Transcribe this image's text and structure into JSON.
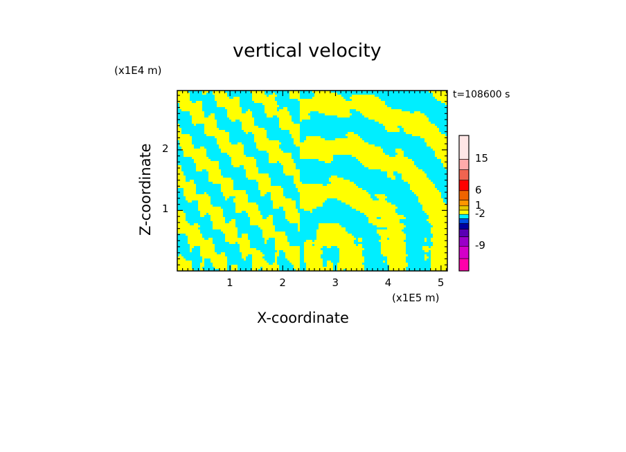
{
  "chart_data": {
    "type": "heatmap",
    "title": "vertical velocity",
    "xlabel": "X-coordinate",
    "ylabel": "Z-coordinate",
    "x_unit": "(x1E5 m)",
    "y_unit": "(x1E4 m)",
    "time_label": "t=108600 s",
    "xlim": [
      0,
      5.12
    ],
    "ylim": [
      0,
      2.98
    ],
    "x_ticks": [
      {
        "value": 1,
        "label": "1"
      },
      {
        "value": 2,
        "label": "2"
      },
      {
        "value": 3,
        "label": "3"
      },
      {
        "value": 4,
        "label": "4"
      },
      {
        "value": 5,
        "label": "5"
      }
    ],
    "y_ticks": [
      {
        "value": 1,
        "label": "1"
      },
      {
        "value": 2,
        "label": "2"
      }
    ],
    "dominant_colors": {
      "positive": "#ffff00",
      "negative": "#00eeff"
    },
    "colorbar": {
      "levels": [
        {
          "color": "#ff00aa"
        },
        {
          "color": "#d400c8"
        },
        {
          "color": "#9a00c8"
        },
        {
          "color": "#5a00b4"
        },
        {
          "color": "#0000a0"
        },
        {
          "color": "#0050e6"
        },
        {
          "color": "#00eeff"
        },
        {
          "color": "#ffff00"
        },
        {
          "color": "#e6c800"
        },
        {
          "color": "#ff9600"
        },
        {
          "color": "#f06400"
        },
        {
          "color": "#ff0000"
        },
        {
          "color": "#f06450"
        },
        {
          "color": "#ffaaaa"
        },
        {
          "color": "#ffe6e6"
        }
      ],
      "tick_labels": [
        {
          "label": "-9",
          "level": 1
        },
        {
          "label": "-2",
          "level": 6
        },
        {
          "label": "1",
          "level": 8
        },
        {
          "label": "6",
          "level": 10
        },
        {
          "label": "15",
          "level": 13
        }
      ]
    }
  }
}
